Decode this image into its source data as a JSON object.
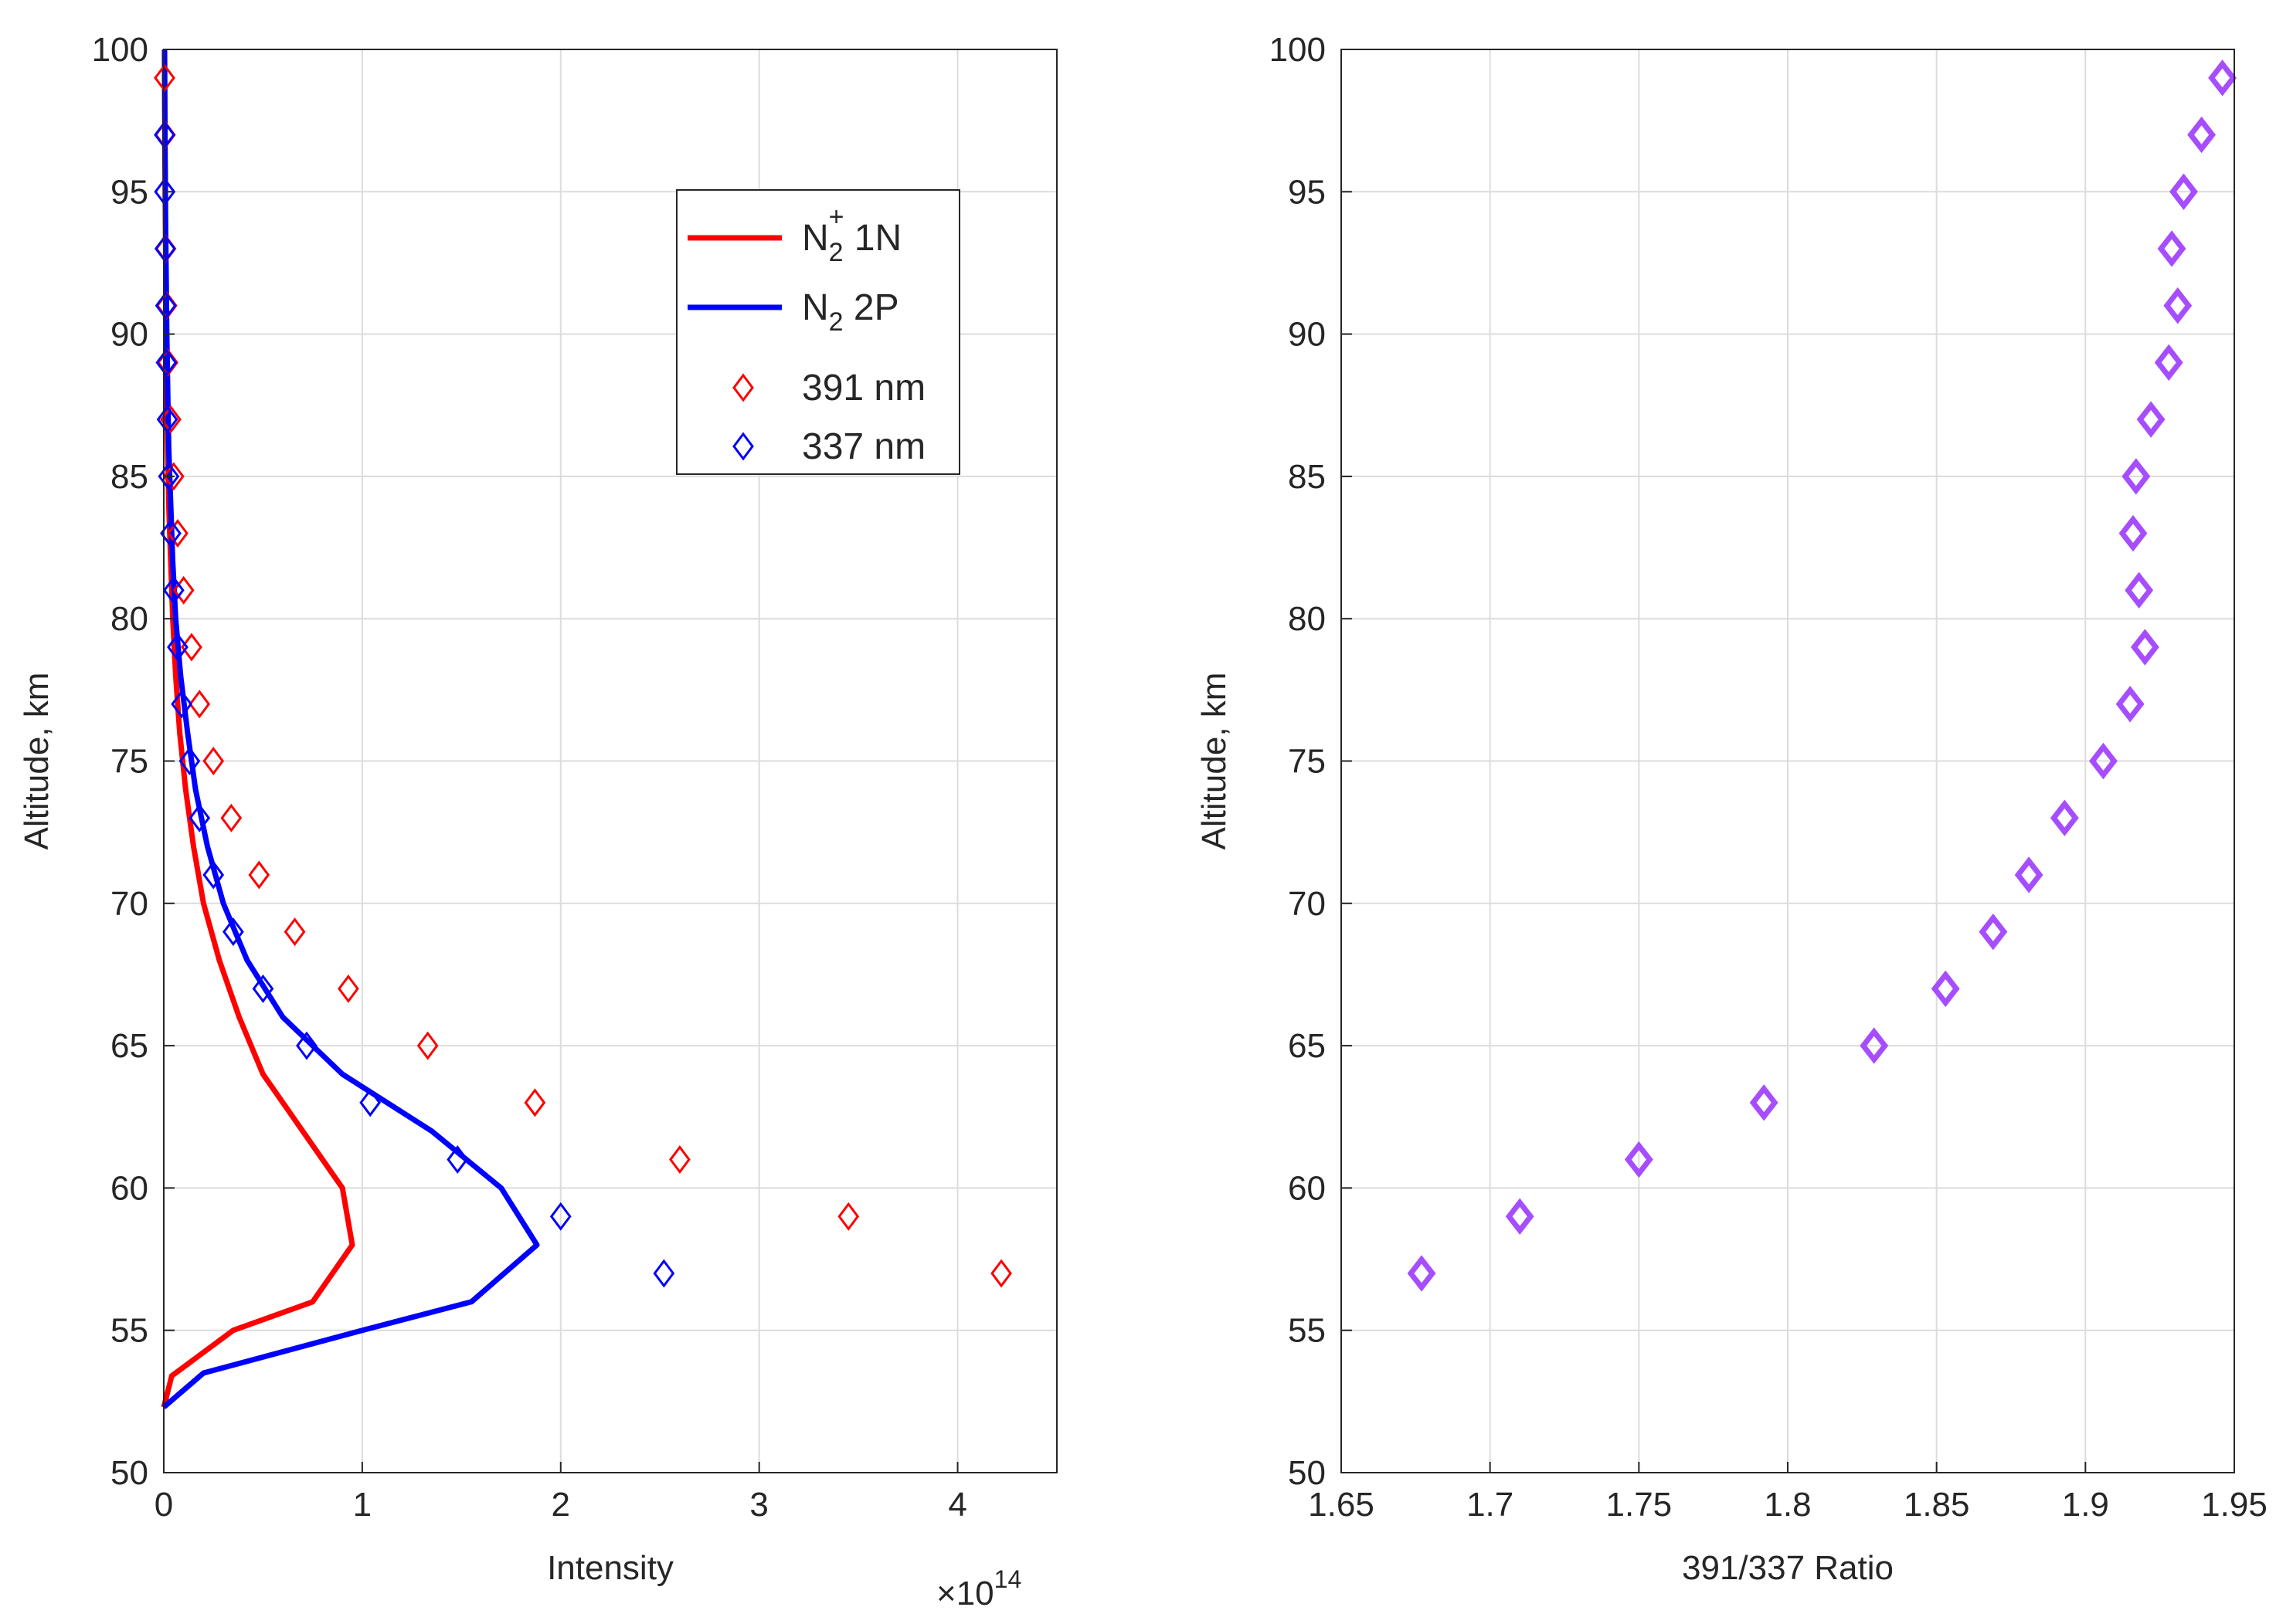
{
  "chart_data": [
    {
      "type": "line",
      "xlabel": "Intensity",
      "ylabel": "Altitude, km",
      "xlim": [
        0,
        4.5
      ],
      "ylim": [
        50,
        100
      ],
      "x_exponent": "×10",
      "x_exponent_power": "14",
      "xticks": [
        0,
        1,
        2,
        3,
        4
      ],
      "yticks": [
        50,
        55,
        60,
        65,
        70,
        75,
        80,
        85,
        90,
        95,
        100
      ],
      "grid": true,
      "legend_position": "top-right",
      "legend": [
        {
          "label_base": "N",
          "label_sub": "2",
          "label_sup": "+",
          "label_tail": " 1N",
          "style": "line",
          "color": "#ff0000"
        },
        {
          "label_base": "N",
          "label_sub": "2",
          "label_sup": "",
          "label_tail": " 2P",
          "style": "line",
          "color": "#0000ff"
        },
        {
          "label_base": "",
          "label_sub": "",
          "label_sup": "",
          "label_tail": "391 nm",
          "style": "diamond",
          "color": "#ff0000"
        },
        {
          "label_base": "",
          "label_sub": "",
          "label_sup": "",
          "label_tail": "337 nm",
          "style": "diamond",
          "color": "#0000ff"
        }
      ],
      "series": [
        {
          "kind": "line",
          "color": "#ff0000",
          "x": [
            0.0,
            0.04,
            0.35,
            0.75,
            0.95,
            0.9,
            0.7,
            0.5,
            0.38,
            0.28,
            0.2,
            0.15,
            0.11,
            0.08,
            0.06,
            0.045,
            0.035,
            0.025,
            0.02,
            0.015,
            0.012,
            0.01,
            0.008,
            0.006,
            0.005,
            0.004
          ],
          "y": [
            52.3,
            53.4,
            55,
            56,
            58,
            60,
            62,
            64,
            66,
            68,
            70,
            72,
            74,
            76,
            78,
            80,
            82,
            84,
            86,
            88,
            90,
            92,
            94,
            96,
            98,
            100
          ]
        },
        {
          "kind": "line",
          "color": "#0000ff",
          "x": [
            0.0,
            0.2,
            1.0,
            1.55,
            1.88,
            1.7,
            1.35,
            0.9,
            0.6,
            0.42,
            0.3,
            0.22,
            0.16,
            0.12,
            0.085,
            0.06,
            0.045,
            0.035,
            0.025,
            0.02,
            0.015,
            0.012,
            0.009,
            0.007,
            0.005,
            0.004
          ],
          "y": [
            52.3,
            53.5,
            55,
            56,
            58,
            60,
            62,
            64,
            66,
            68,
            70,
            72,
            74,
            76,
            78,
            80,
            82,
            84,
            86,
            88,
            90,
            92,
            94,
            96,
            98,
            100
          ]
        },
        {
          "kind": "marker",
          "color": "#ff0000",
          "x": [
            4.22,
            3.45,
            2.6,
            1.87,
            1.33,
            0.93,
            0.66,
            0.48,
            0.34,
            0.25,
            0.18,
            0.14,
            0.1,
            0.07,
            0.05,
            0.035,
            0.02,
            0.015,
            0.01,
            0.007,
            0.004
          ],
          "y": [
            57,
            59,
            61,
            63,
            65,
            67,
            69,
            71,
            73,
            75,
            77,
            79,
            81,
            83,
            85,
            87,
            89,
            91,
            93,
            97,
            99
          ]
        },
        {
          "kind": "marker",
          "color": "#0000ff",
          "x": [
            2.52,
            2.0,
            1.48,
            1.04,
            0.72,
            0.5,
            0.35,
            0.25,
            0.18,
            0.13,
            0.09,
            0.07,
            0.05,
            0.035,
            0.025,
            0.018,
            0.013,
            0.01,
            0.007,
            0.005,
            0.004
          ],
          "y": [
            57,
            59,
            61,
            63,
            65,
            67,
            69,
            71,
            73,
            75,
            77,
            79,
            81,
            83,
            85,
            87,
            89,
            91,
            93,
            95,
            97
          ]
        }
      ]
    },
    {
      "type": "scatter",
      "xlabel": "391/337 Ratio",
      "ylabel": "Altitude, km",
      "xlim": [
        1.65,
        1.95
      ],
      "ylim": [
        50,
        100
      ],
      "xticks": [
        "1.65",
        "1.7",
        "1.75",
        "1.8",
        "1.85",
        "1.9",
        "1.95"
      ],
      "yticks": [
        50,
        55,
        60,
        65,
        70,
        75,
        80,
        85,
        90,
        95,
        100
      ],
      "grid": true,
      "series": [
        {
          "kind": "marker",
          "color": "#a64dff",
          "x": [
            1.677,
            1.71,
            1.75,
            1.792,
            1.829,
            1.853,
            1.869,
            1.881,
            1.893,
            1.906,
            1.915,
            1.92,
            1.918,
            1.916,
            1.917,
            1.922,
            1.928,
            1.931,
            1.929,
            1.933,
            1.939,
            1.946
          ],
          "y": [
            57,
            59,
            61,
            63,
            65,
            67,
            69,
            71,
            73,
            75,
            77,
            79,
            81,
            83,
            85,
            87,
            89,
            91,
            93,
            95,
            97,
            99
          ]
        }
      ]
    }
  ]
}
